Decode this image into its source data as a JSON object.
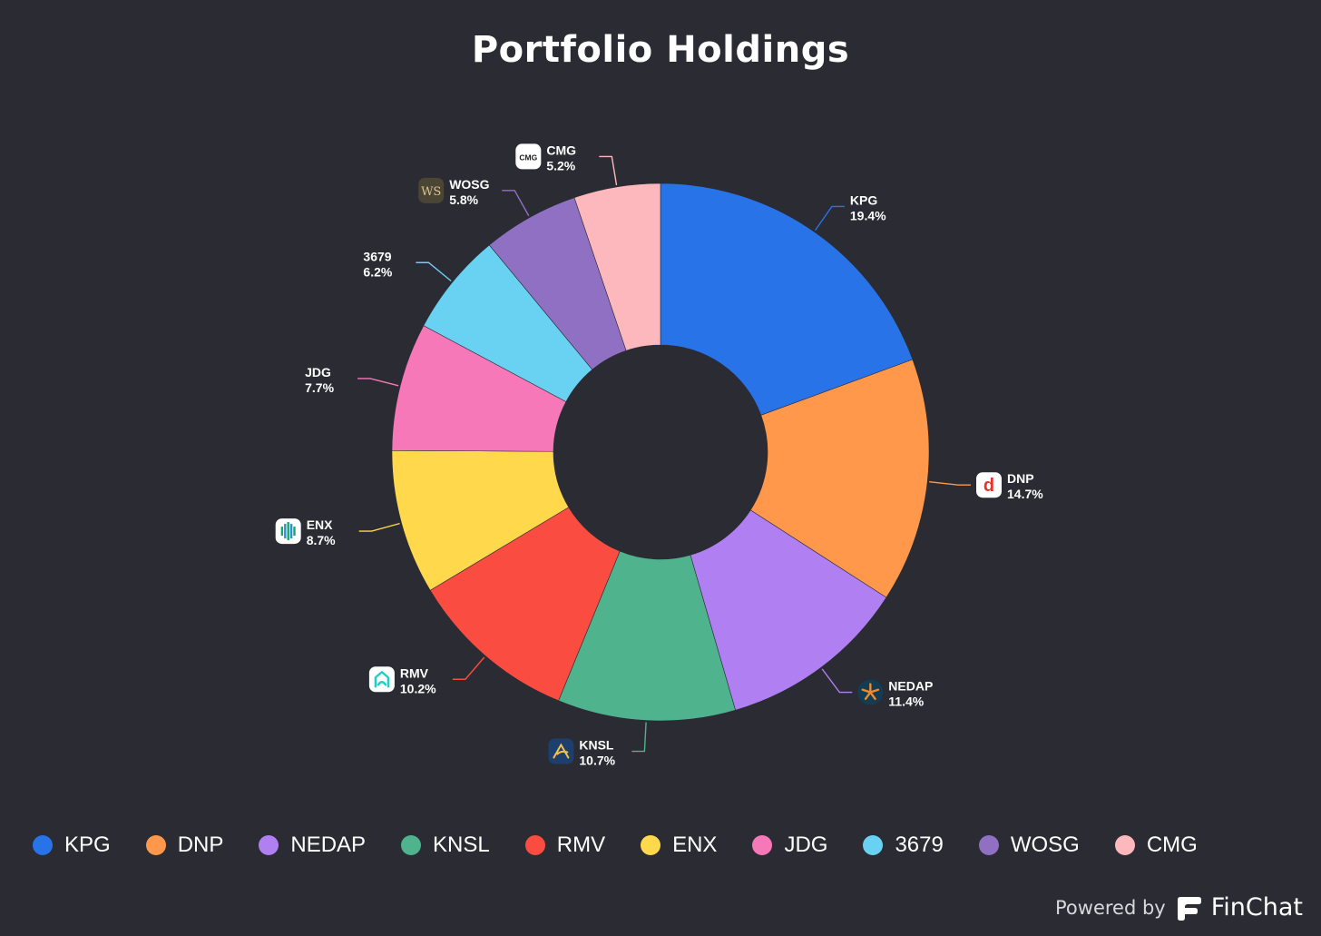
{
  "chart_data": {
    "type": "pie",
    "variant": "donut",
    "title": "Portfolio Holdings",
    "slices": [
      {
        "name": "KPG",
        "value": 19.4,
        "label": "19.4%",
        "color": "#2873e8",
        "icon": null
      },
      {
        "name": "DNP",
        "value": 14.7,
        "label": "14.7%",
        "color": "#ff984b",
        "icon": "dnp-logo-icon"
      },
      {
        "name": "NEDAP",
        "value": 11.4,
        "label": "11.4%",
        "color": "#b07ff2",
        "icon": "nedap-logo-icon"
      },
      {
        "name": "KNSL",
        "value": 10.7,
        "label": "10.7%",
        "color": "#4fb38e",
        "icon": "knsl-logo-icon"
      },
      {
        "name": "RMV",
        "value": 10.2,
        "label": "10.2%",
        "color": "#fb4c41",
        "icon": "rmv-logo-icon"
      },
      {
        "name": "ENX",
        "value": 8.7,
        "label": "8.7%",
        "color": "#ffd84b",
        "icon": "enx-logo-icon"
      },
      {
        "name": "JDG",
        "value": 7.7,
        "label": "7.7%",
        "color": "#f778b8",
        "icon": null
      },
      {
        "name": "3679",
        "value": 6.2,
        "label": "6.2%",
        "color": "#69d2f3",
        "icon": null
      },
      {
        "name": "WOSG",
        "value": 5.8,
        "label": "5.8%",
        "color": "#9070c3",
        "icon": "wosg-logo-icon"
      },
      {
        "name": "CMG",
        "value": 5.2,
        "label": "5.2%",
        "color": "#fdb8bd",
        "icon": "cmg-logo-icon"
      }
    ],
    "legend_position": "bottom"
  },
  "logo_text": {
    "wosg": "WS",
    "cmg": "CMG",
    "dnp": "d"
  },
  "footer": {
    "powered_by": "Powered by",
    "brand": "FinChat"
  }
}
